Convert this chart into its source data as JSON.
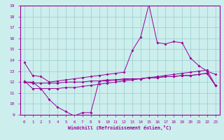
{
  "xlabel": "Windchill (Refroidissement éolien,°C)",
  "background_color": "#cceeed",
  "line_color": "#990099",
  "grid_color": "#99cccc",
  "hours": [
    0,
    1,
    2,
    3,
    4,
    5,
    6,
    7,
    8,
    9,
    10,
    11,
    12,
    13,
    14,
    15,
    16,
    17,
    18,
    19,
    20,
    21,
    22,
    23
  ],
  "y_upper": [
    13.8,
    12.6,
    12.5,
    12.0,
    12.1,
    12.2,
    12.3,
    12.4,
    12.5,
    12.6,
    12.7,
    12.8,
    12.9,
    14.9,
    16.1,
    19.1,
    15.6,
    15.5,
    15.7,
    15.6,
    14.2,
    13.5,
    13.0,
    12.7
  ],
  "y_mid1": [
    12.1,
    11.4,
    11.4,
    11.4,
    11.4,
    11.5,
    11.5,
    11.6,
    11.7,
    11.8,
    11.9,
    12.0,
    12.1,
    12.2,
    12.3,
    12.4,
    12.5,
    12.6,
    12.7,
    12.8,
    12.9,
    13.0,
    13.1,
    11.7
  ],
  "y_mid2": [
    12.0,
    11.9,
    11.9,
    11.9,
    11.9,
    12.0,
    12.0,
    12.0,
    12.1,
    12.1,
    12.2,
    12.2,
    12.3,
    12.3,
    12.3,
    12.4,
    12.4,
    12.5,
    12.5,
    12.6,
    12.6,
    12.7,
    12.8,
    11.7
  ],
  "y_lower": [
    12.0,
    12.0,
    11.4,
    10.4,
    9.7,
    9.3,
    8.9,
    9.2,
    9.2,
    12.1,
    12.1,
    12.2,
    12.2,
    12.3,
    12.3,
    12.4,
    12.4,
    12.5,
    12.5,
    12.6,
    12.6,
    12.7,
    12.8,
    11.7
  ],
  "ylim": [
    9,
    19
  ],
  "xlim": [
    -0.5,
    23.5
  ],
  "yticks": [
    9,
    10,
    11,
    12,
    13,
    14,
    15,
    16,
    17,
    18,
    19
  ],
  "xticks": [
    0,
    1,
    2,
    3,
    4,
    5,
    6,
    7,
    8,
    9,
    10,
    11,
    12,
    13,
    14,
    15,
    16,
    17,
    18,
    19,
    20,
    21,
    22,
    23
  ]
}
